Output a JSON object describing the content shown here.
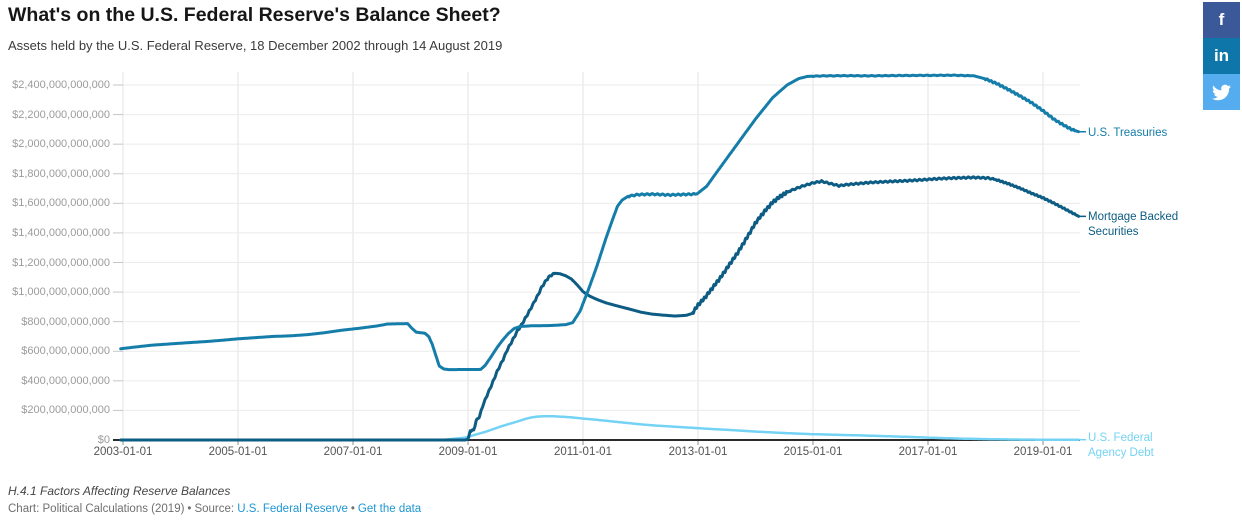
{
  "chart_data": {
    "type": "line",
    "title": "What's on the U.S. Federal Reserve's Balance Sheet?",
    "subtitle": "Assets held by the U.S. Federal Reserve, 18 December 2002 through 14 August 2019",
    "units": "USD billions",
    "grid": "on",
    "legend_position": "right-edge-direct-labels",
    "x_range_years": [
      2002.96,
      2019.62
    ],
    "ylim_billions": [
      0,
      2400
    ],
    "y_axis": {
      "ticks": [
        {
          "label": "$0",
          "billions": 0
        },
        {
          "label": "$200,000,000,000",
          "billions": 200
        },
        {
          "label": "$400,000,000,000",
          "billions": 400
        },
        {
          "label": "$600,000,000,000",
          "billions": 600
        },
        {
          "label": "$800,000,000,000",
          "billions": 800
        },
        {
          "label": "$1,000,000,000,000",
          "billions": 1000
        },
        {
          "label": "$1,200,000,000,000",
          "billions": 1200
        },
        {
          "label": "$1,400,000,000,000",
          "billions": 1400
        },
        {
          "label": "$1,600,000,000,000",
          "billions": 1600
        },
        {
          "label": "$1,800,000,000,000",
          "billions": 1800
        },
        {
          "label": "$2,000,000,000,000",
          "billions": 2000
        },
        {
          "label": "$2,200,000,000,000",
          "billions": 2200
        },
        {
          "label": "$2,400,000,000,000",
          "billions": 2400
        }
      ]
    },
    "x_axis": {
      "ticks": [
        {
          "label": "2003-01-01",
          "year": 2003
        },
        {
          "label": "2005-01-01",
          "year": 2005
        },
        {
          "label": "2007-01-01",
          "year": 2007
        },
        {
          "label": "2009-01-01",
          "year": 2009
        },
        {
          "label": "2011-01-01",
          "year": 2011
        },
        {
          "label": "2013-01-01",
          "year": 2013
        },
        {
          "label": "2015-01-01",
          "year": 2015
        },
        {
          "label": "2017-01-01",
          "year": 2017
        },
        {
          "label": "2019-01-01",
          "year": 2019
        }
      ]
    },
    "series": [
      {
        "id": "us-federal-agency-debt",
        "name": "U.S. Federal Agency Debt",
        "label_lines": [
          "U.S. Federal",
          "Agency Debt"
        ],
        "color": "#74d3f4",
        "stroke_width": 2.5,
        "wiggle": [],
        "points": [
          [
            2002.96,
            0
          ],
          [
            2008.5,
            0
          ],
          [
            2008.6,
            2
          ],
          [
            2008.7,
            6
          ],
          [
            2008.8,
            10
          ],
          [
            2008.9,
            14
          ],
          [
            2009.0,
            20
          ],
          [
            2009.1,
            33
          ],
          [
            2009.2,
            44
          ],
          [
            2009.3,
            55
          ],
          [
            2009.4,
            68
          ],
          [
            2009.5,
            82
          ],
          [
            2009.6,
            95
          ],
          [
            2009.7,
            107
          ],
          [
            2009.8,
            118
          ],
          [
            2009.9,
            130
          ],
          [
            2010.0,
            143
          ],
          [
            2010.1,
            152
          ],
          [
            2010.2,
            158
          ],
          [
            2010.35,
            161
          ],
          [
            2010.5,
            160
          ],
          [
            2010.65,
            157
          ],
          [
            2010.8,
            153
          ],
          [
            2011.0,
            145
          ],
          [
            2011.2,
            138
          ],
          [
            2011.4,
            130
          ],
          [
            2011.6,
            122
          ],
          [
            2011.8,
            114
          ],
          [
            2012.0,
            106
          ],
          [
            2012.25,
            98
          ],
          [
            2012.5,
            92
          ],
          [
            2012.75,
            86
          ],
          [
            2013.0,
            80
          ],
          [
            2013.25,
            74
          ],
          [
            2013.5,
            69
          ],
          [
            2013.75,
            63
          ],
          [
            2014.0,
            57
          ],
          [
            2014.25,
            52
          ],
          [
            2014.5,
            47
          ],
          [
            2014.75,
            43
          ],
          [
            2015.0,
            39
          ],
          [
            2015.25,
            37
          ],
          [
            2015.5,
            34
          ],
          [
            2015.75,
            32
          ],
          [
            2016.0,
            29
          ],
          [
            2016.25,
            26
          ],
          [
            2016.5,
            23
          ],
          [
            2016.75,
            20
          ],
          [
            2017.0,
            16
          ],
          [
            2017.25,
            13
          ],
          [
            2017.5,
            10
          ],
          [
            2017.75,
            8
          ],
          [
            2018.0,
            6
          ],
          [
            2018.3,
            4
          ],
          [
            2018.6,
            3
          ],
          [
            2019.0,
            2
          ],
          [
            2019.62,
            2
          ]
        ]
      },
      {
        "id": "mortgage-backed-securities",
        "name": "Mortgage Backed Securities",
        "label_lines": [
          "Mortgage Backed",
          "Securities"
        ],
        "color": "#0d5c84",
        "stroke_width": 3,
        "wiggle": [
          {
            "from": 2009.05,
            "to": 2010.5,
            "amp": 6,
            "period": 0.07
          },
          {
            "from": 2012.92,
            "to": 2014.55,
            "amp": 11,
            "period": 0.055
          },
          {
            "from": 2014.6,
            "to": 2018.15,
            "amp": 5,
            "period": 0.085
          },
          {
            "from": 2018.2,
            "to": 2019.55,
            "amp": 4,
            "period": 0.06
          }
        ],
        "points": [
          [
            2002.96,
            0
          ],
          [
            2008.95,
            0
          ],
          [
            2009.0,
            6
          ],
          [
            2009.04,
            62
          ],
          [
            2009.1,
            67
          ],
          [
            2009.14,
            128
          ],
          [
            2009.2,
            160
          ],
          [
            2009.26,
            235
          ],
          [
            2009.32,
            292
          ],
          [
            2009.38,
            345
          ],
          [
            2009.44,
            400
          ],
          [
            2009.5,
            458
          ],
          [
            2009.56,
            505
          ],
          [
            2009.62,
            552
          ],
          [
            2009.68,
            608
          ],
          [
            2009.74,
            650
          ],
          [
            2009.8,
            693
          ],
          [
            2009.86,
            738
          ],
          [
            2009.92,
            772
          ],
          [
            2009.98,
            812
          ],
          [
            2010.04,
            852
          ],
          [
            2010.1,
            895
          ],
          [
            2010.16,
            940
          ],
          [
            2010.22,
            982
          ],
          [
            2010.28,
            1032
          ],
          [
            2010.34,
            1068
          ],
          [
            2010.4,
            1100
          ],
          [
            2010.46,
            1118
          ],
          [
            2010.52,
            1127
          ],
          [
            2010.6,
            1124
          ],
          [
            2010.7,
            1110
          ],
          [
            2010.8,
            1088
          ],
          [
            2010.9,
            1048
          ],
          [
            2011.0,
            1003
          ],
          [
            2011.12,
            972
          ],
          [
            2011.25,
            949
          ],
          [
            2011.4,
            927
          ],
          [
            2011.6,
            906
          ],
          [
            2011.8,
            886
          ],
          [
            2012.0,
            865
          ],
          [
            2012.2,
            851
          ],
          [
            2012.4,
            844
          ],
          [
            2012.6,
            838
          ],
          [
            2012.8,
            843
          ],
          [
            2012.9,
            856
          ],
          [
            2013.0,
            913
          ],
          [
            2013.12,
            962
          ],
          [
            2013.25,
            1028
          ],
          [
            2013.4,
            1103
          ],
          [
            2013.55,
            1188
          ],
          [
            2013.7,
            1272
          ],
          [
            2013.85,
            1368
          ],
          [
            2014.0,
            1468
          ],
          [
            2014.15,
            1543
          ],
          [
            2014.3,
            1608
          ],
          [
            2014.45,
            1653
          ],
          [
            2014.6,
            1684
          ],
          [
            2014.8,
            1714
          ],
          [
            2015.0,
            1738
          ],
          [
            2015.15,
            1749
          ],
          [
            2015.3,
            1734
          ],
          [
            2015.45,
            1719
          ],
          [
            2015.6,
            1727
          ],
          [
            2015.8,
            1734
          ],
          [
            2016.0,
            1741
          ],
          [
            2016.3,
            1747
          ],
          [
            2016.6,
            1752
          ],
          [
            2016.9,
            1759
          ],
          [
            2017.2,
            1767
          ],
          [
            2017.5,
            1772
          ],
          [
            2017.8,
            1775
          ],
          [
            2018.05,
            1771
          ],
          [
            2018.2,
            1758
          ],
          [
            2018.4,
            1732
          ],
          [
            2018.6,
            1702
          ],
          [
            2018.8,
            1668
          ],
          [
            2019.0,
            1637
          ],
          [
            2019.2,
            1599
          ],
          [
            2019.4,
            1558
          ],
          [
            2019.62,
            1512
          ]
        ]
      },
      {
        "id": "us-treasuries",
        "name": "U.S. Treasuries",
        "label_lines": [
          "U.S. Treasuries"
        ],
        "color": "#147da9",
        "stroke_width": 3,
        "wiggle": [
          {
            "from": 2011.8,
            "to": 2012.95,
            "amp": 5,
            "period": 0.09
          },
          {
            "from": 2015.0,
            "to": 2017.7,
            "amp": 2,
            "period": 0.12
          },
          {
            "from": 2018.0,
            "to": 2019.55,
            "amp": 6,
            "period": 0.065
          }
        ],
        "points": [
          [
            2002.96,
            617
          ],
          [
            2003.2,
            628
          ],
          [
            2003.5,
            641
          ],
          [
            2003.8,
            649
          ],
          [
            2004.1,
            657
          ],
          [
            2004.5,
            667
          ],
          [
            2004.8,
            677
          ],
          [
            2005.0,
            684
          ],
          [
            2005.3,
            692
          ],
          [
            2005.6,
            700
          ],
          [
            2005.9,
            704
          ],
          [
            2006.2,
            712
          ],
          [
            2006.5,
            725
          ],
          [
            2006.8,
            742
          ],
          [
            2007.1,
            755
          ],
          [
            2007.4,
            770
          ],
          [
            2007.6,
            784
          ],
          [
            2007.95,
            787
          ],
          [
            2008.02,
            757
          ],
          [
            2008.1,
            729
          ],
          [
            2008.25,
            722
          ],
          [
            2008.32,
            698
          ],
          [
            2008.38,
            645
          ],
          [
            2008.44,
            572
          ],
          [
            2008.5,
            500
          ],
          [
            2008.58,
            480
          ],
          [
            2008.66,
            476
          ],
          [
            2009.22,
            477
          ],
          [
            2009.3,
            505
          ],
          [
            2009.4,
            562
          ],
          [
            2009.5,
            622
          ],
          [
            2009.6,
            674
          ],
          [
            2009.7,
            719
          ],
          [
            2009.8,
            753
          ],
          [
            2009.9,
            767
          ],
          [
            2010.1,
            772
          ],
          [
            2010.45,
            774
          ],
          [
            2010.7,
            780
          ],
          [
            2010.82,
            793
          ],
          [
            2010.95,
            872
          ],
          [
            2011.1,
            1022
          ],
          [
            2011.25,
            1185
          ],
          [
            2011.4,
            1365
          ],
          [
            2011.5,
            1475
          ],
          [
            2011.6,
            1580
          ],
          [
            2011.68,
            1622
          ],
          [
            2011.78,
            1647
          ],
          [
            2011.95,
            1659
          ],
          [
            2012.2,
            1662
          ],
          [
            2012.5,
            1657
          ],
          [
            2012.75,
            1660
          ],
          [
            2012.98,
            1663
          ],
          [
            2013.15,
            1715
          ],
          [
            2013.4,
            1850
          ],
          [
            2013.7,
            2010
          ],
          [
            2014.0,
            2170
          ],
          [
            2014.3,
            2315
          ],
          [
            2014.55,
            2400
          ],
          [
            2014.75,
            2443
          ],
          [
            2014.9,
            2458
          ],
          [
            2015.2,
            2462
          ],
          [
            2015.6,
            2463
          ],
          [
            2016.0,
            2462
          ],
          [
            2016.5,
            2464
          ],
          [
            2017.0,
            2465
          ],
          [
            2017.45,
            2466
          ],
          [
            2017.8,
            2462
          ],
          [
            2018.0,
            2441
          ],
          [
            2018.2,
            2409
          ],
          [
            2018.4,
            2369
          ],
          [
            2018.6,
            2326
          ],
          [
            2018.8,
            2281
          ],
          [
            2019.0,
            2226
          ],
          [
            2019.2,
            2166
          ],
          [
            2019.35,
            2131
          ],
          [
            2019.5,
            2099
          ],
          [
            2019.62,
            2084
          ]
        ]
      }
    ]
  },
  "social": {
    "buttons": [
      {
        "id": "facebook",
        "icon": "f",
        "color": "#3b5998"
      },
      {
        "id": "linkedin",
        "icon": "in",
        "color": "#0e76a8"
      },
      {
        "id": "twitter",
        "icon": "twitter-bird",
        "color": "#55acee"
      }
    ]
  },
  "footer": {
    "note": "H.4.1 Factors Affecting Reserve Balances",
    "credit": "Chart: Political Calculations (2019)",
    "separator": "•",
    "source_label": "Source:",
    "source_link": "U.S. Federal Reserve",
    "data_link": "Get the data",
    "link_color": "#1e96d2"
  }
}
